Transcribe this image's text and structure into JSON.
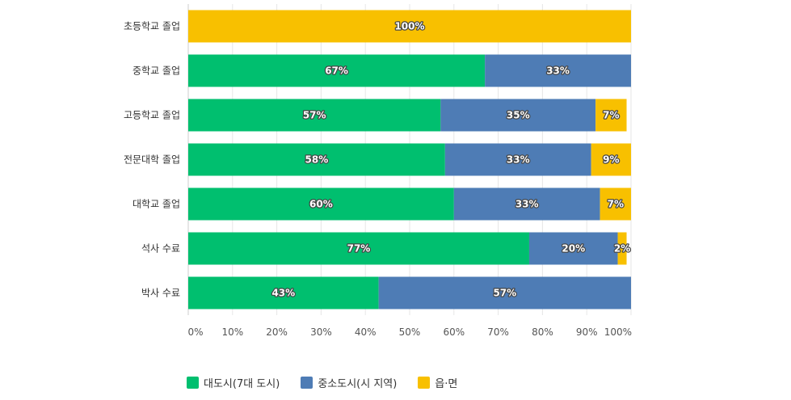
{
  "chart_data": {
    "type": "bar",
    "orientation": "horizontal",
    "stacked": true,
    "categories": [
      "초등학교 졸업",
      "중학교 졸업",
      "고등학교 졸업",
      "전문대학 졸업",
      "대학교 졸업",
      "석사 수료",
      "박사 수료"
    ],
    "series": [
      {
        "name": "대도시(7대 도시)",
        "color": "#00bf6f",
        "values": [
          0,
          67,
          57,
          58,
          60,
          77,
          43
        ]
      },
      {
        "name": "중소도시(시 지역)",
        "color": "#4e7cb5",
        "values": [
          0,
          33,
          35,
          33,
          33,
          20,
          57
        ]
      },
      {
        "name": "읍·면",
        "color": "#f8c000",
        "values": [
          100,
          0,
          7,
          9,
          7,
          2,
          0
        ]
      }
    ],
    "x_ticks": [
      "0%",
      "10%",
      "20%",
      "30%",
      "40%",
      "50%",
      "60%",
      "70%",
      "80%",
      "90%",
      "100%"
    ],
    "xlim": [
      0,
      100
    ],
    "unit": "%",
    "grid": true,
    "legend_position": "bottom-left"
  }
}
